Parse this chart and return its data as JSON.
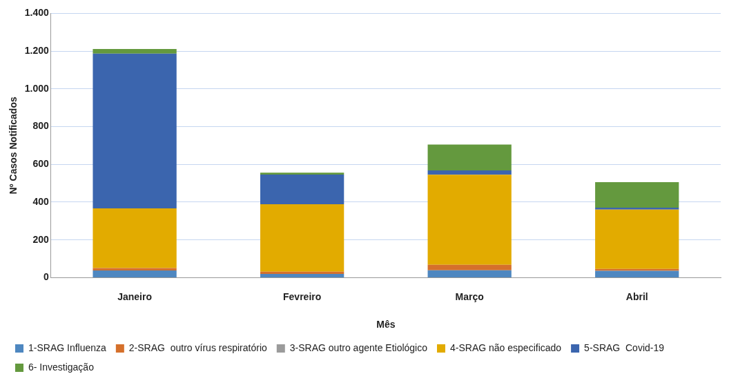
{
  "chart_data": {
    "type": "bar",
    "stacked": true,
    "xlabel": "Mês",
    "ylabel": "Nº Casos Notificados",
    "categories": [
      "Janeiro",
      "Fevreiro",
      "Março",
      "Abril"
    ],
    "series": [
      {
        "name": "1-SRAG Influenza",
        "color": "#4e87c0",
        "values": [
          38,
          20,
          39,
          36
        ]
      },
      {
        "name": "2-SRAG  outro vírus respiratório",
        "color": "#d5702b",
        "values": [
          13,
          12,
          29,
          10
        ]
      },
      {
        "name": "3-SRAG outro agente Etiológico",
        "color": "#9b9b9b",
        "values": [
          0,
          0,
          0,
          0
        ]
      },
      {
        "name": "4-SRAG não especificado",
        "color": "#e2ab00",
        "values": [
          316,
          357,
          477,
          315
        ]
      },
      {
        "name": "5-SRAG  Covid-19",
        "color": "#3b65ae",
        "values": [
          820,
          157,
          23,
          10
        ]
      },
      {
        "name": "6- Investigação",
        "color": "#64993e",
        "values": [
          24,
          10,
          137,
          135
        ]
      }
    ],
    "ylim": [
      0,
      1400
    ],
    "yticks": [
      0,
      200,
      400,
      600,
      800,
      {
        "value": 1000,
        "label": "1.000"
      },
      {
        "value": 1200,
        "label": "1.200"
      },
      {
        "value": 1400,
        "label": "1.400"
      }
    ],
    "grid": "y",
    "legend": "bottom"
  }
}
